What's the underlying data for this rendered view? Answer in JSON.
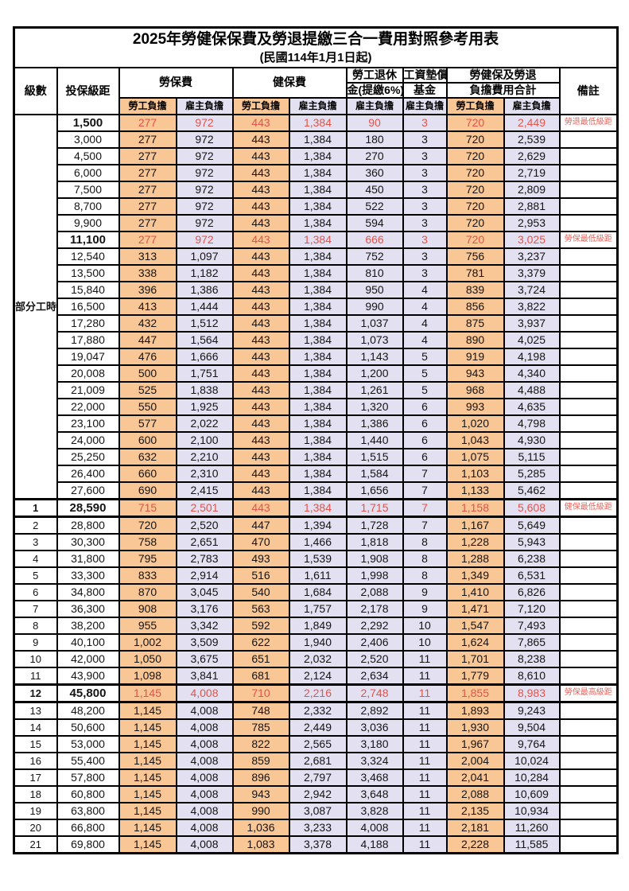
{
  "colors": {
    "labor_share_bg": "#F9C696",
    "employer_share_bg": "#E3E1F1",
    "highlight_text": "#E2534B",
    "border": "#000000",
    "page_bg": "#FFFFFF"
  },
  "table": {
    "title": "2025年勞健保保費及勞退提繳三合一費用對照參考用表",
    "subtitle": "(民國114年1月1日起)",
    "headers": {
      "level": "級數",
      "bracket": "投保級距",
      "labor_insurance": "勞保費",
      "health_insurance": "健保費",
      "pension_line1": "勞工退休",
      "pension_line2": "金(提繳6%)",
      "wage_fund_line1": "工資墊償",
      "wage_fund_line2": "基金",
      "total_line1": "勞健保及勞退",
      "total_line2": "負擔費用合計",
      "remark": "備註",
      "labor_share": "勞工負擔",
      "employer_share": "雇主負擔"
    },
    "part_time_label": "部分工時",
    "part_time_span": 23,
    "column_share_types": [
      "labor",
      "employer",
      "labor",
      "employer",
      "employer",
      "employer",
      "labor",
      "employer"
    ],
    "rows": [
      {
        "level": "",
        "bracket": "1,500",
        "values": [
          "277",
          "972",
          "443",
          "1,384",
          "90",
          "3",
          "720",
          "2,449"
        ],
        "remark": "勞退最低級距",
        "highlight": true,
        "frame": false
      },
      {
        "level": "",
        "bracket": "3,000",
        "values": [
          "277",
          "972",
          "443",
          "1,384",
          "180",
          "3",
          "720",
          "2,539"
        ],
        "remark": "",
        "highlight": false,
        "frame": false
      },
      {
        "level": "",
        "bracket": "4,500",
        "values": [
          "277",
          "972",
          "443",
          "1,384",
          "270",
          "3",
          "720",
          "2,629"
        ],
        "remark": "",
        "highlight": false,
        "frame": false
      },
      {
        "level": "",
        "bracket": "6,000",
        "values": [
          "277",
          "972",
          "443",
          "1,384",
          "360",
          "3",
          "720",
          "2,719"
        ],
        "remark": "",
        "highlight": false,
        "frame": false
      },
      {
        "level": "",
        "bracket": "7,500",
        "values": [
          "277",
          "972",
          "443",
          "1,384",
          "450",
          "3",
          "720",
          "2,809"
        ],
        "remark": "",
        "highlight": false,
        "frame": false
      },
      {
        "level": "",
        "bracket": "8,700",
        "values": [
          "277",
          "972",
          "443",
          "1,384",
          "522",
          "3",
          "720",
          "2,881"
        ],
        "remark": "",
        "highlight": false,
        "frame": false
      },
      {
        "level": "",
        "bracket": "9,900",
        "values": [
          "277",
          "972",
          "443",
          "1,384",
          "594",
          "3",
          "720",
          "2,953"
        ],
        "remark": "",
        "highlight": false,
        "frame": false
      },
      {
        "level": "",
        "bracket": "11,100",
        "values": [
          "277",
          "972",
          "443",
          "1,384",
          "666",
          "3",
          "720",
          "3,025"
        ],
        "remark": "勞保最低級距",
        "highlight": true,
        "frame": false
      },
      {
        "level": "",
        "bracket": "12,540",
        "values": [
          "313",
          "1,097",
          "443",
          "1,384",
          "752",
          "3",
          "756",
          "3,237"
        ],
        "remark": "",
        "highlight": false,
        "frame": false
      },
      {
        "level": "",
        "bracket": "13,500",
        "values": [
          "338",
          "1,182",
          "443",
          "1,384",
          "810",
          "3",
          "781",
          "3,379"
        ],
        "remark": "",
        "highlight": false,
        "frame": false
      },
      {
        "level": "",
        "bracket": "15,840",
        "values": [
          "396",
          "1,386",
          "443",
          "1,384",
          "950",
          "4",
          "839",
          "3,724"
        ],
        "remark": "",
        "highlight": false,
        "frame": false
      },
      {
        "level": "",
        "bracket": "16,500",
        "values": [
          "413",
          "1,444",
          "443",
          "1,384",
          "990",
          "4",
          "856",
          "3,822"
        ],
        "remark": "",
        "highlight": false,
        "frame": false
      },
      {
        "level": "",
        "bracket": "17,280",
        "values": [
          "432",
          "1,512",
          "443",
          "1,384",
          "1,037",
          "4",
          "875",
          "3,937"
        ],
        "remark": "",
        "highlight": false,
        "frame": false
      },
      {
        "level": "",
        "bracket": "17,880",
        "values": [
          "447",
          "1,564",
          "443",
          "1,384",
          "1,073",
          "4",
          "890",
          "4,025"
        ],
        "remark": "",
        "highlight": false,
        "frame": false
      },
      {
        "level": "",
        "bracket": "19,047",
        "values": [
          "476",
          "1,666",
          "443",
          "1,384",
          "1,143",
          "5",
          "919",
          "4,198"
        ],
        "remark": "",
        "highlight": false,
        "frame": false
      },
      {
        "level": "",
        "bracket": "20,008",
        "values": [
          "500",
          "1,751",
          "443",
          "1,384",
          "1,200",
          "5",
          "943",
          "4,340"
        ],
        "remark": "",
        "highlight": false,
        "frame": false
      },
      {
        "level": "",
        "bracket": "21,009",
        "values": [
          "525",
          "1,838",
          "443",
          "1,384",
          "1,261",
          "5",
          "968",
          "4,488"
        ],
        "remark": "",
        "highlight": false,
        "frame": false
      },
      {
        "level": "",
        "bracket": "22,000",
        "values": [
          "550",
          "1,925",
          "443",
          "1,384",
          "1,320",
          "6",
          "993",
          "4,635"
        ],
        "remark": "",
        "highlight": false,
        "frame": false
      },
      {
        "level": "",
        "bracket": "23,100",
        "values": [
          "577",
          "2,022",
          "443",
          "1,384",
          "1,386",
          "6",
          "1,020",
          "4,798"
        ],
        "remark": "",
        "highlight": false,
        "frame": false
      },
      {
        "level": "",
        "bracket": "24,000",
        "values": [
          "600",
          "2,100",
          "443",
          "1,384",
          "1,440",
          "6",
          "1,043",
          "4,930"
        ],
        "remark": "",
        "highlight": false,
        "frame": false
      },
      {
        "level": "",
        "bracket": "25,250",
        "values": [
          "632",
          "2,210",
          "443",
          "1,384",
          "1,515",
          "6",
          "1,075",
          "5,115"
        ],
        "remark": "",
        "highlight": false,
        "frame": false
      },
      {
        "level": "",
        "bracket": "26,400",
        "values": [
          "660",
          "2,310",
          "443",
          "1,384",
          "1,584",
          "7",
          "1,103",
          "5,285"
        ],
        "remark": "",
        "highlight": false,
        "frame": false
      },
      {
        "level": "",
        "bracket": "27,600",
        "values": [
          "690",
          "2,415",
          "443",
          "1,384",
          "1,656",
          "7",
          "1,133",
          "5,462"
        ],
        "remark": "",
        "highlight": false,
        "frame": false
      },
      {
        "level": "1",
        "bracket": "28,590",
        "values": [
          "715",
          "2,501",
          "443",
          "1,384",
          "1,715",
          "7",
          "1,158",
          "5,608"
        ],
        "remark": "健保最低級距",
        "highlight": true,
        "frame": true
      },
      {
        "level": "2",
        "bracket": "28,800",
        "values": [
          "720",
          "2,520",
          "447",
          "1,394",
          "1,728",
          "7",
          "1,167",
          "5,649"
        ],
        "remark": "",
        "highlight": false,
        "frame": false
      },
      {
        "level": "3",
        "bracket": "30,300",
        "values": [
          "758",
          "2,651",
          "470",
          "1,466",
          "1,818",
          "8",
          "1,228",
          "5,943"
        ],
        "remark": "",
        "highlight": false,
        "frame": false
      },
      {
        "level": "4",
        "bracket": "31,800",
        "values": [
          "795",
          "2,783",
          "493",
          "1,539",
          "1,908",
          "8",
          "1,288",
          "6,238"
        ],
        "remark": "",
        "highlight": false,
        "frame": false
      },
      {
        "level": "5",
        "bracket": "33,300",
        "values": [
          "833",
          "2,914",
          "516",
          "1,611",
          "1,998",
          "8",
          "1,349",
          "6,531"
        ],
        "remark": "",
        "highlight": false,
        "frame": false
      },
      {
        "level": "6",
        "bracket": "34,800",
        "values": [
          "870",
          "3,045",
          "540",
          "1,684",
          "2,088",
          "9",
          "1,410",
          "6,826"
        ],
        "remark": "",
        "highlight": false,
        "frame": false
      },
      {
        "level": "7",
        "bracket": "36,300",
        "values": [
          "908",
          "3,176",
          "563",
          "1,757",
          "2,178",
          "9",
          "1,471",
          "7,120"
        ],
        "remark": "",
        "highlight": false,
        "frame": false
      },
      {
        "level": "8",
        "bracket": "38,200",
        "values": [
          "955",
          "3,342",
          "592",
          "1,849",
          "2,292",
          "10",
          "1,547",
          "7,493"
        ],
        "remark": "",
        "highlight": false,
        "frame": false
      },
      {
        "level": "9",
        "bracket": "40,100",
        "values": [
          "1,002",
          "3,509",
          "622",
          "1,940",
          "2,406",
          "10",
          "1,624",
          "7,865"
        ],
        "remark": "",
        "highlight": false,
        "frame": false
      },
      {
        "level": "10",
        "bracket": "42,000",
        "values": [
          "1,050",
          "3,675",
          "651",
          "2,032",
          "2,520",
          "11",
          "1,701",
          "8,238"
        ],
        "remark": "",
        "highlight": false,
        "frame": false
      },
      {
        "level": "11",
        "bracket": "43,900",
        "values": [
          "1,098",
          "3,841",
          "681",
          "2,124",
          "2,634",
          "11",
          "1,779",
          "8,610"
        ],
        "remark": "",
        "highlight": false,
        "frame": false
      },
      {
        "level": "12",
        "bracket": "45,800",
        "values": [
          "1,145",
          "4,008",
          "710",
          "2,216",
          "2,748",
          "11",
          "1,855",
          "8,983"
        ],
        "remark": "勞保最高級距",
        "highlight": true,
        "frame": true
      },
      {
        "level": "13",
        "bracket": "48,200",
        "values": [
          "1,145",
          "4,008",
          "748",
          "2,332",
          "2,892",
          "11",
          "1,893",
          "9,243"
        ],
        "remark": "",
        "highlight": false,
        "frame": false
      },
      {
        "level": "14",
        "bracket": "50,600",
        "values": [
          "1,145",
          "4,008",
          "785",
          "2,449",
          "3,036",
          "11",
          "1,930",
          "9,504"
        ],
        "remark": "",
        "highlight": false,
        "frame": false
      },
      {
        "level": "15",
        "bracket": "53,000",
        "values": [
          "1,145",
          "4,008",
          "822",
          "2,565",
          "3,180",
          "11",
          "1,967",
          "9,764"
        ],
        "remark": "",
        "highlight": false,
        "frame": false
      },
      {
        "level": "16",
        "bracket": "55,400",
        "values": [
          "1,145",
          "4,008",
          "859",
          "2,681",
          "3,324",
          "11",
          "2,004",
          "10,024"
        ],
        "remark": "",
        "highlight": false,
        "frame": false
      },
      {
        "level": "17",
        "bracket": "57,800",
        "values": [
          "1,145",
          "4,008",
          "896",
          "2,797",
          "3,468",
          "11",
          "2,041",
          "10,284"
        ],
        "remark": "",
        "highlight": false,
        "frame": false
      },
      {
        "level": "18",
        "bracket": "60,800",
        "values": [
          "1,145",
          "4,008",
          "943",
          "2,942",
          "3,648",
          "11",
          "2,088",
          "10,609"
        ],
        "remark": "",
        "highlight": false,
        "frame": false
      },
      {
        "level": "19",
        "bracket": "63,800",
        "values": [
          "1,145",
          "4,008",
          "990",
          "3,087",
          "3,828",
          "11",
          "2,135",
          "10,934"
        ],
        "remark": "",
        "highlight": false,
        "frame": false
      },
      {
        "level": "20",
        "bracket": "66,800",
        "values": [
          "1,145",
          "4,008",
          "1,036",
          "3,233",
          "4,008",
          "11",
          "2,181",
          "11,260"
        ],
        "remark": "",
        "highlight": false,
        "frame": false
      },
      {
        "level": "21",
        "bracket": "69,800",
        "values": [
          "1,145",
          "4,008",
          "1,083",
          "3,378",
          "4,188",
          "11",
          "2,228",
          "11,585"
        ],
        "remark": "",
        "highlight": false,
        "frame": false
      }
    ]
  }
}
